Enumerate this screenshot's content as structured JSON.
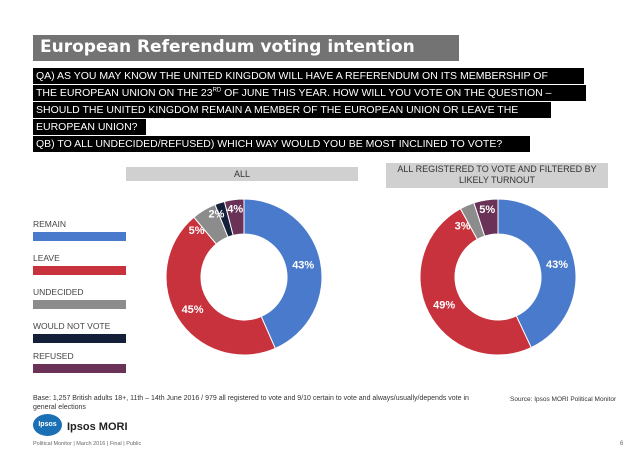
{
  "title": "European Referendum voting intention",
  "question": {
    "qa_line1": "QA) AS YOU MAY KNOW THE UNITED KINGDOM WILL HAVE A REFERENDUM ON ITS MEMBERSHIP OF",
    "qa_line2_pre": "THE EUROPEAN UNION ON THE 23",
    "qa_line2_sup": "RD",
    "qa_line2_post": " OF JUNE THIS YEAR. HOW WILL YOU VOTE ON THE QUESTION –",
    "qa_line3": "SHOULD THE UNITED KINGDOM REMAIN A MEMBER OF THE EUROPEAN UNION OR LEAVE THE",
    "qa_line4": "EUROPEAN UNION?",
    "qb_line": "QB) TO ALL UNDECIDED/REFUSED) WHICH WAY WOULD YOU BE MOST INCLINED TO VOTE?"
  },
  "legend": [
    {
      "label": "REMAIN",
      "color": "#4a7acb"
    },
    {
      "label": "LEAVE",
      "color": "#c8323c"
    },
    {
      "label": "UNDECIDED",
      "color": "#8c8c8c"
    },
    {
      "label": "WOULD NOT VOTE",
      "color": "#14203a"
    },
    {
      "label": "REFUSED",
      "color": "#6a3256"
    }
  ],
  "chart_data": [
    {
      "type": "pie",
      "donut": true,
      "title": "ALL",
      "slices": [
        {
          "label": "REMAIN",
          "value": 43,
          "text": "43%",
          "color": "#4a7acb"
        },
        {
          "label": "LEAVE",
          "value": 45,
          "text": "45%",
          "color": "#c8323c"
        },
        {
          "label": "UNDECIDED",
          "value": 5,
          "text": "5%",
          "color": "#8c8c8c"
        },
        {
          "label": "WOULD NOT VOTE",
          "value": 2,
          "text": "2%",
          "color": "#14203a"
        },
        {
          "label": "REFUSED",
          "value": 4,
          "text": "4%",
          "color": "#6a3256"
        }
      ]
    },
    {
      "type": "pie",
      "donut": true,
      "title": "ALL REGISTERED TO VOTE AND FILTERED BY LIKELY TURNOUT",
      "slices": [
        {
          "label": "REMAIN",
          "value": 43,
          "text": "43%",
          "color": "#4a7acb"
        },
        {
          "label": "LEAVE",
          "value": 49,
          "text": "49%",
          "color": "#c8323c"
        },
        {
          "label": "UNDECIDED",
          "value": 3,
          "text": "3%",
          "color": "#8c8c8c"
        },
        {
          "label": "REFUSED",
          "value": 5,
          "text": "5%",
          "color": "#6a3256"
        }
      ]
    }
  ],
  "panel_labels": {
    "left": "ALL",
    "right_line1": "ALL REGISTERED TO VOTE AND FILTERED BY",
    "right_line2": "LIKELY TURNOUT"
  },
  "footnotes": {
    "base": "Base: 1,257 British adults 18+, 11th – 14th June 2016 / 979 all registered to vote and 9/10 certain to vote and always/usually/depends vote in general elections",
    "source": "Source: Ipsos MORI Political Monitor",
    "logo_text": "Ipsos",
    "brand": "Ipsos MORI",
    "footer": "Political Monitor | March 2016 | Final | Public",
    "page_number": "6"
  }
}
